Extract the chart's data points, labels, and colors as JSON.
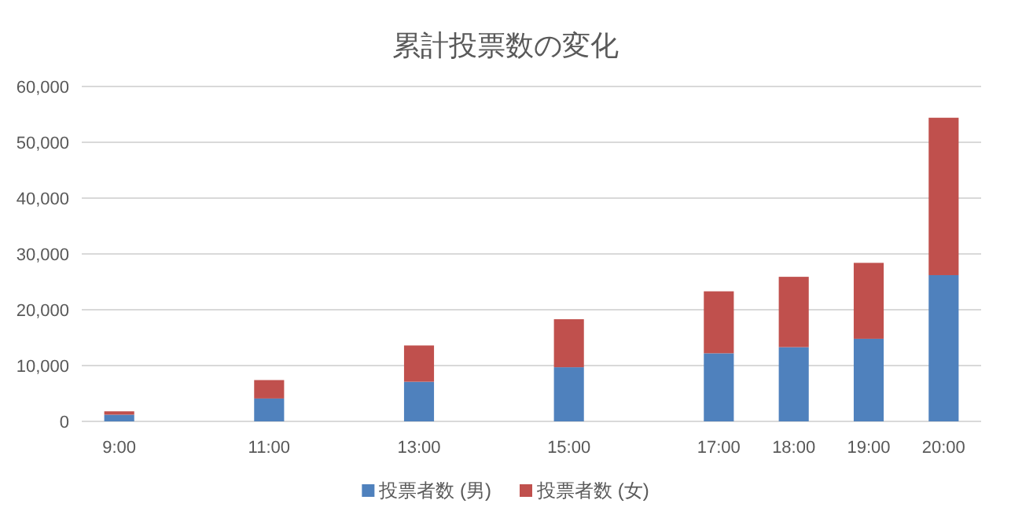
{
  "chart_data": {
    "type": "bar",
    "title": "累計投票数の変化",
    "stacked": true,
    "x": [
      9,
      11,
      13,
      15,
      17,
      18,
      19,
      20
    ],
    "xlim": [
      8.5,
      20.5
    ],
    "xticks": [
      {
        "value": 9,
        "label": "9:00"
      },
      {
        "value": 11,
        "label": "11:00"
      },
      {
        "value": 13,
        "label": "13:00"
      },
      {
        "value": 15,
        "label": "15:00"
      },
      {
        "value": 17,
        "label": "17:00"
      },
      {
        "value": 18,
        "label": "18:00"
      },
      {
        "value": 19,
        "label": "19:00"
      },
      {
        "value": 20,
        "label": "20:00"
      }
    ],
    "ylim": [
      0,
      60000
    ],
    "yticks": [
      {
        "value": 0,
        "label": "0"
      },
      {
        "value": 10000,
        "label": "10,000"
      },
      {
        "value": 20000,
        "label": "20,000"
      },
      {
        "value": 30000,
        "label": "30,000"
      },
      {
        "value": 40000,
        "label": "40,000"
      },
      {
        "value": 50000,
        "label": "50,000"
      },
      {
        "value": 60000,
        "label": "60,000"
      }
    ],
    "grid": "y",
    "legend": "bottom",
    "series": [
      {
        "name": "投票者数 (男)",
        "color": "#4f81bd",
        "values": [
          1200,
          4100,
          7100,
          9700,
          12200,
          13300,
          14800,
          26200
        ]
      },
      {
        "name": "投票者数 (女)",
        "color": "#c0504d",
        "values": [
          600,
          3300,
          6500,
          8600,
          11100,
          12600,
          13600,
          28200
        ]
      }
    ]
  }
}
